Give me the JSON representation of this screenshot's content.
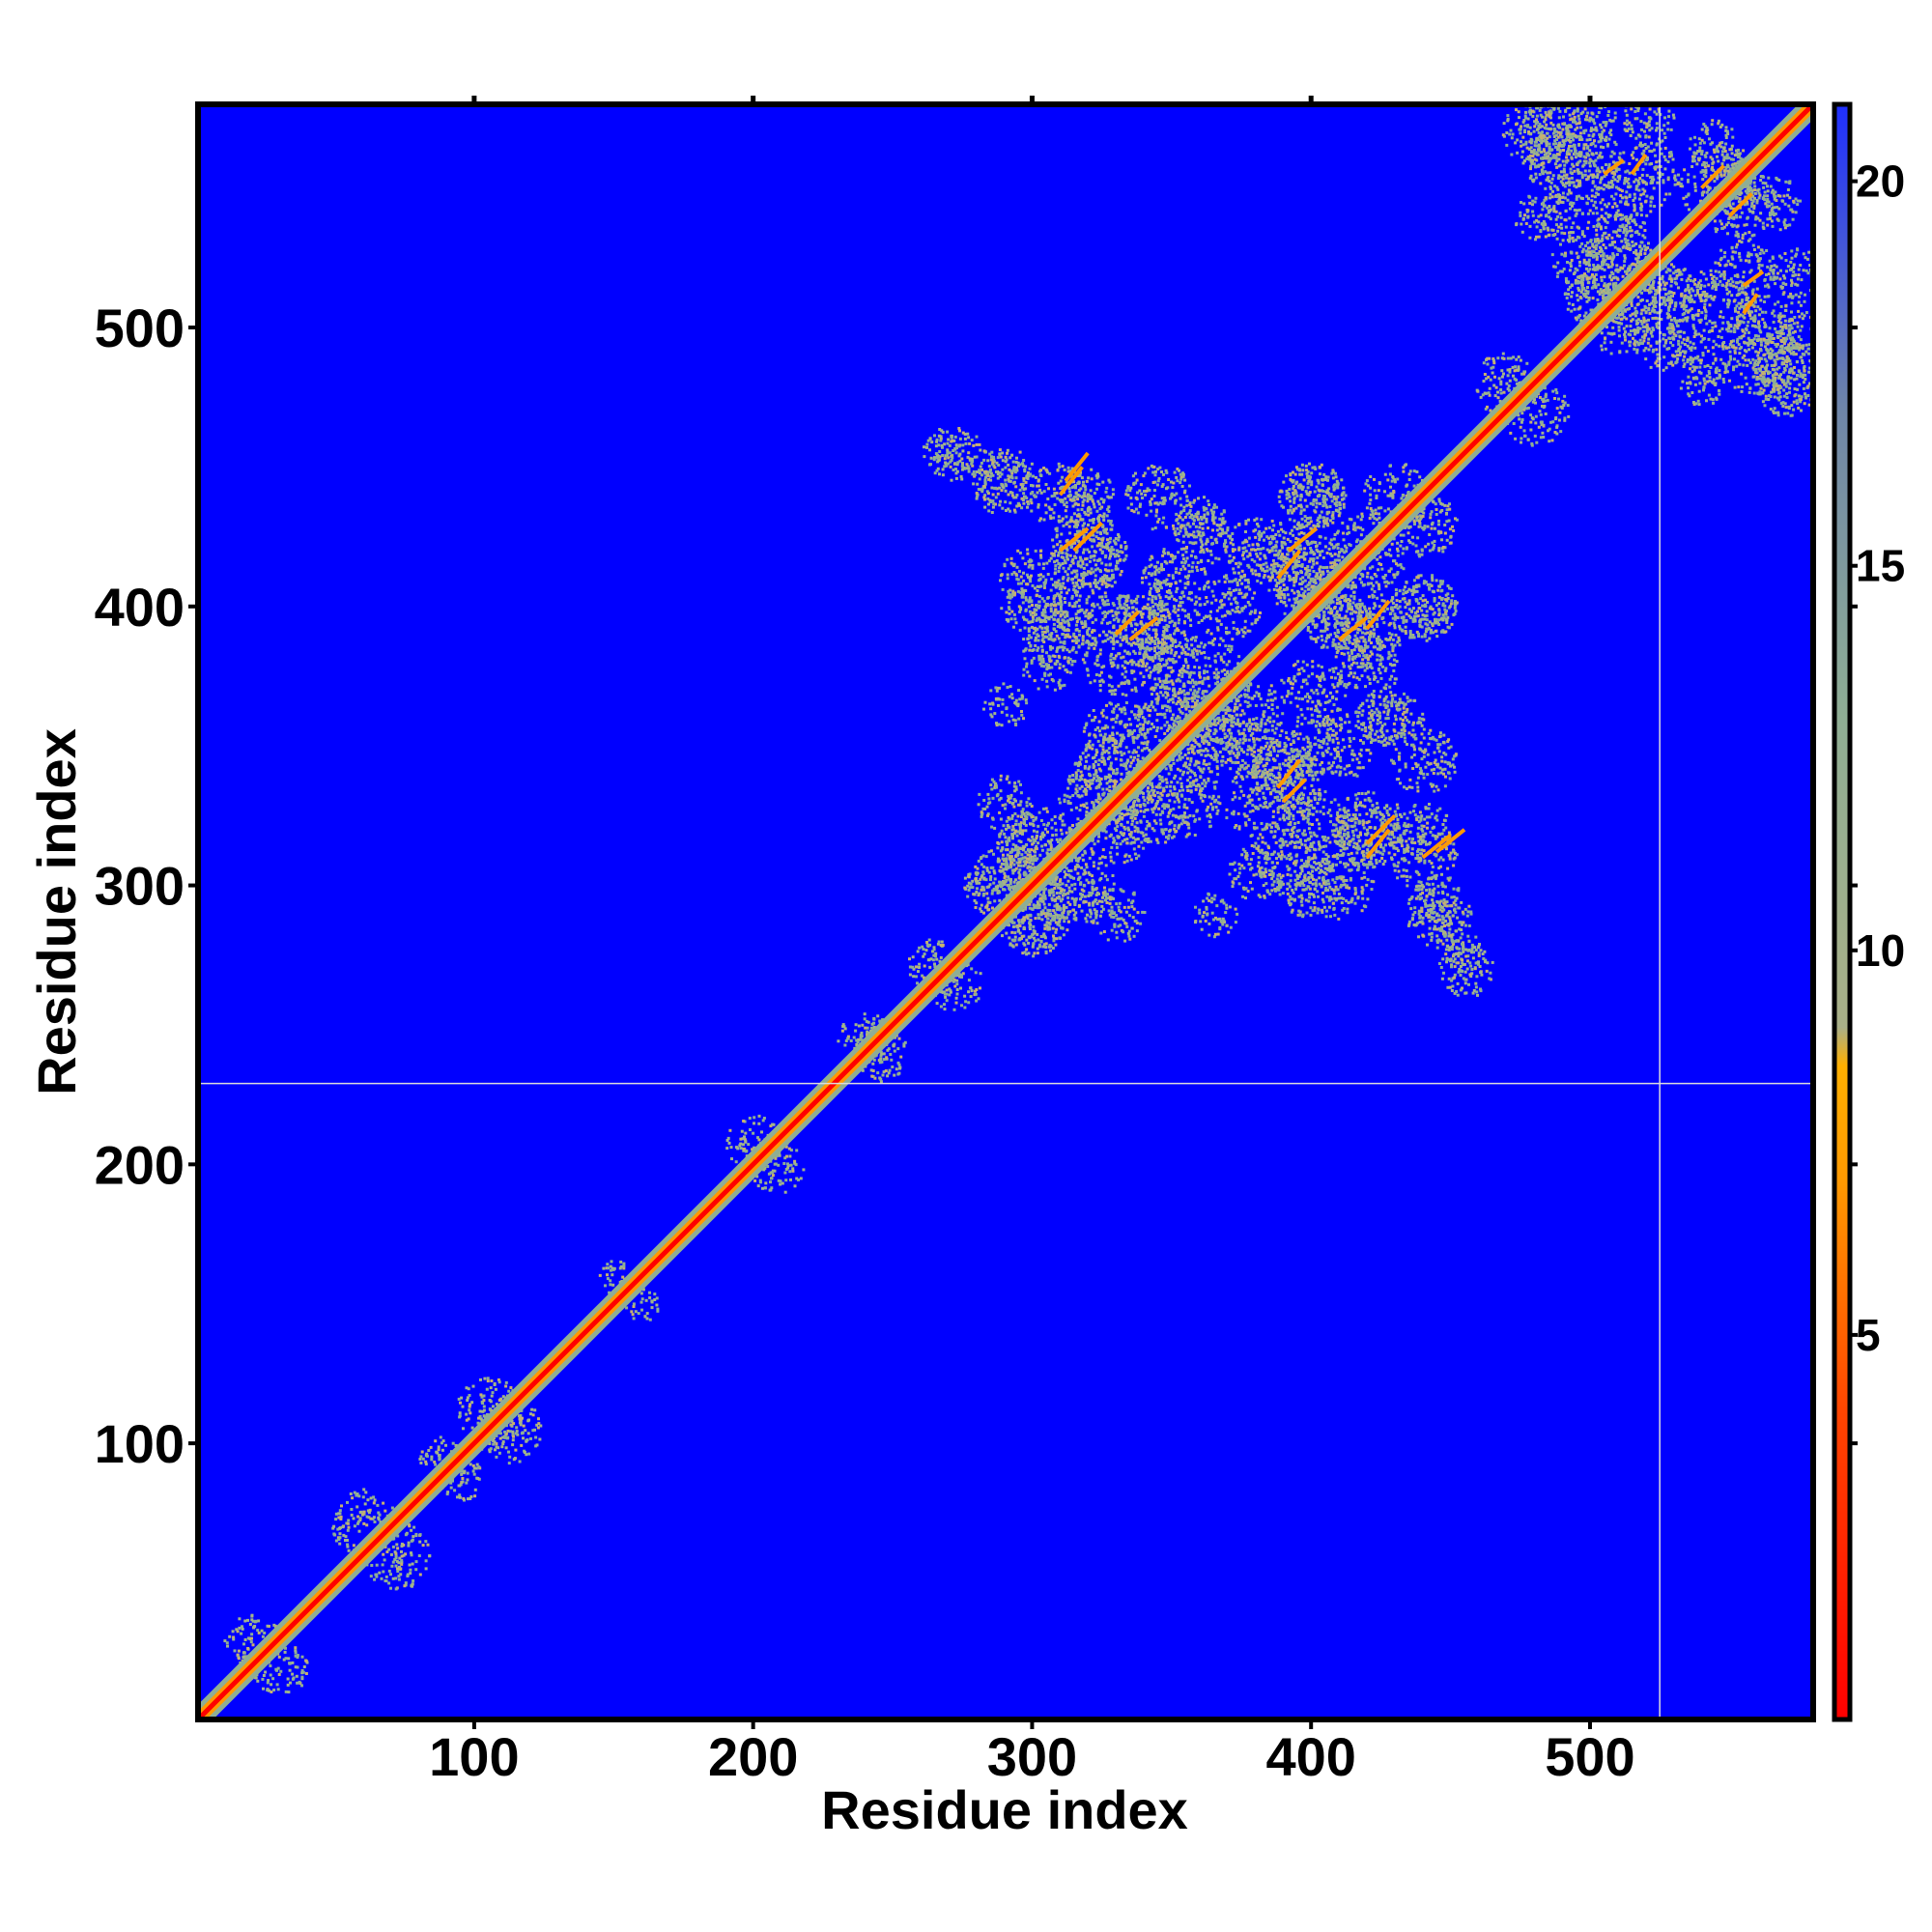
{
  "chart_data": {
    "type": "heatmap",
    "title": "",
    "xlabel": "Residue index",
    "ylabel": "Residue index",
    "xlim": [
      1,
      580
    ],
    "ylim": [
      1,
      580
    ],
    "x_ticks": [
      100,
      200,
      300,
      400,
      500
    ],
    "y_ticks": [
      100,
      200,
      300,
      400,
      500
    ],
    "colorbar": {
      "range": [
        0,
        21
      ],
      "ticks": [
        5,
        10,
        15,
        20
      ],
      "colors": [
        {
          "value": 0,
          "color": "#ff0000"
        },
        {
          "value": 4,
          "color": "#ff4500"
        },
        {
          "value": 7,
          "color": "#ff9900"
        },
        {
          "value": 8.5,
          "color": "#ffb000"
        },
        {
          "value": 9,
          "color": "#a9b088"
        },
        {
          "value": 13,
          "color": "#8fae94"
        },
        {
          "value": 17,
          "color": "#6f86a8"
        },
        {
          "value": 21,
          "color": "#1f2fff"
        }
      ]
    },
    "background_color": "#0000ff",
    "guide_lines": {
      "horizontal_y": 229,
      "vertical_x": 525,
      "color": "#dddddd"
    },
    "diagonal_band": {
      "from": 1,
      "to": 580
    },
    "contact_regions": [
      {
        "x": [
          265,
          465
        ],
        "y": [
          270,
          465
        ],
        "description": "dense domain contacts"
      },
      {
        "x": [
          470,
          580
        ],
        "y": [
          460,
          580
        ],
        "description": "C-terminal domain contacts"
      }
    ]
  }
}
